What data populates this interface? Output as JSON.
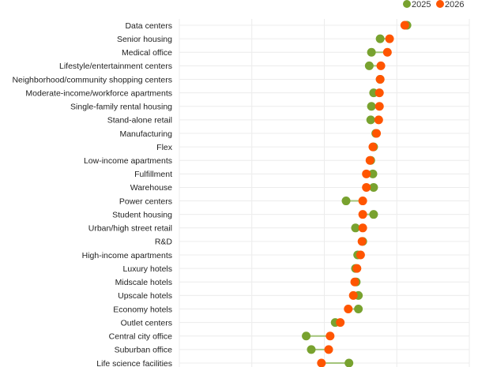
{
  "chart_data": {
    "type": "dumbbell",
    "title": "",
    "xlabel": "",
    "ylabel": "",
    "xlim": [
      0,
      4
    ],
    "grid": true,
    "legend_position": "top-right",
    "colors": {
      "2025": "#78a22f",
      "2026": "#ff5500",
      "connector": "#a3c47a",
      "grid": "#ececec"
    },
    "series": [
      {
        "name": "2025",
        "key": "2025"
      },
      {
        "name": "2026",
        "key": "2026"
      }
    ],
    "categories": [
      "Data centers",
      "Senior housing",
      "Medical office",
      "Lifestyle/entertainment centers",
      "Neighborhood/community shopping centers",
      "Moderate-income/workforce apartments",
      "Single-family rental housing",
      "Stand-alone retail",
      "Manufacturing",
      "Flex",
      "Low-income apartments",
      "Fulfillment",
      "Warehouse",
      "Power centers",
      "Student housing",
      "Urban/high street retail",
      "R&D",
      "High-income apartments",
      "Luxury hotels",
      "Midscale hotels",
      "Upscale hotels",
      "Economy hotels",
      "Outlet centers",
      "Central city office",
      "Suburban office",
      "Life science facilities"
    ],
    "values_2025": [
      3.14,
      2.77,
      2.65,
      2.62,
      2.77,
      2.68,
      2.65,
      2.64,
      2.71,
      2.68,
      2.64,
      2.67,
      2.68,
      2.3,
      2.68,
      2.43,
      2.53,
      2.46,
      2.43,
      2.44,
      2.47,
      2.47,
      2.15,
      1.75,
      1.82,
      2.34
    ],
    "values_2026": [
      3.11,
      2.9,
      2.87,
      2.78,
      2.77,
      2.76,
      2.76,
      2.75,
      2.72,
      2.67,
      2.63,
      2.58,
      2.58,
      2.53,
      2.53,
      2.53,
      2.52,
      2.5,
      2.45,
      2.42,
      2.4,
      2.33,
      2.22,
      2.08,
      2.06,
      1.96
    ]
  }
}
